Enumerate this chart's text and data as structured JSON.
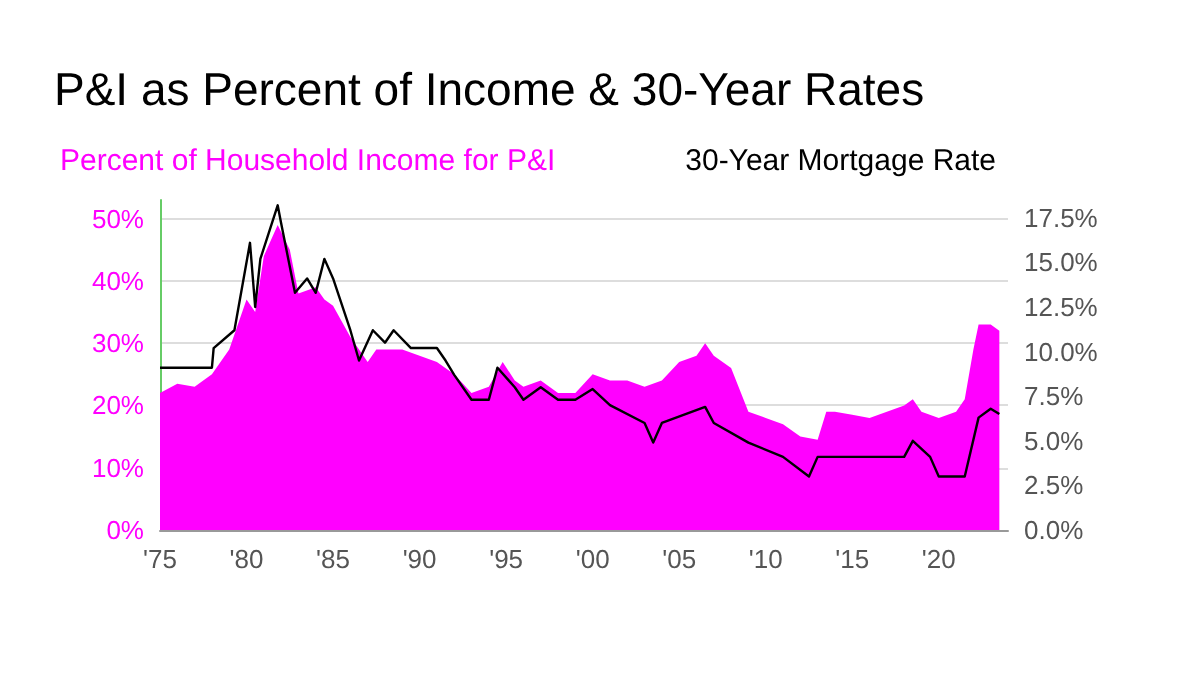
{
  "chart_data": {
    "type": "area",
    "title": "P&I as Percent of Income & 30-Year Rates",
    "legend": "top",
    "grid": "y",
    "marker": "none",
    "xlim": [
      1975,
      2024
    ],
    "xticks": [
      {
        "value": 1975,
        "label": "'75"
      },
      {
        "value": 1980,
        "label": "'80"
      },
      {
        "value": 1985,
        "label": "'85"
      },
      {
        "value": 1990,
        "label": "'90"
      },
      {
        "value": 1995,
        "label": "'95"
      },
      {
        "value": 2000,
        "label": "'00"
      },
      {
        "value": 2005,
        "label": "'05"
      },
      {
        "value": 2010,
        "label": "'10"
      },
      {
        "value": 2015,
        "label": "'15"
      },
      {
        "value": 2020,
        "label": "'20"
      }
    ],
    "ylim": [
      0,
      53
    ],
    "yticks": [
      {
        "value": 0,
        "label": "0%"
      },
      {
        "value": 10,
        "label": "10%"
      },
      {
        "value": 20,
        "label": "20%"
      },
      {
        "value": 30,
        "label": "30%"
      },
      {
        "value": 40,
        "label": "40%"
      },
      {
        "value": 50,
        "label": "50%"
      }
    ],
    "y2lim": [
      0,
      18.5
    ],
    "y2ticks": [
      {
        "value": 0,
        "label": "0.0%"
      },
      {
        "value": 2.5,
        "label": "2.5%"
      },
      {
        "value": 5,
        "label": "5.0%"
      },
      {
        "value": 7.5,
        "label": "7.5%"
      },
      {
        "value": 10,
        "label": "10.0%"
      },
      {
        "value": 12.5,
        "label": "12.5%"
      },
      {
        "value": 15,
        "label": "15.0%"
      },
      {
        "value": 17.5,
        "label": "17.5%"
      }
    ],
    "series": [
      {
        "name": "Percent of Household Income for P&I",
        "color": "#ff00ff",
        "x": [
          1975,
          1976,
          1977,
          1978,
          1979,
          1980,
          1980.5,
          1981,
          1981.8,
          1982.5,
          1983,
          1984,
          1984.5,
          1985,
          1986,
          1987,
          1987.5,
          1988,
          1989,
          1990,
          1991,
          1992,
          1993,
          1994,
          1994.8,
          1995.5,
          1996,
          1997,
          1998,
          1999,
          2000,
          2001,
          2002,
          2003,
          2004,
          2005,
          2006,
          2006.5,
          2007,
          2008,
          2009,
          2010,
          2011,
          2012,
          2013,
          2013.5,
          2014,
          2015,
          2016,
          2017,
          2018,
          2018.5,
          2019,
          2020,
          2021,
          2021.5,
          2022,
          2022.3,
          2023,
          2023.5
        ],
        "values": [
          22,
          23.5,
          23,
          25,
          29,
          37,
          35,
          44,
          49,
          45,
          38,
          39,
          37,
          36,
          31,
          27,
          29,
          29,
          29,
          28,
          27,
          25,
          22,
          23,
          27,
          24,
          23,
          24,
          22,
          22,
          25,
          24,
          24,
          23,
          24,
          27,
          28,
          30,
          28,
          26,
          19,
          18,
          17,
          15,
          14.5,
          19,
          19,
          18.5,
          18,
          19,
          20,
          21,
          19,
          18,
          19,
          21,
          29,
          33,
          33,
          32
        ]
      },
      {
        "name": "30-Year Mortgage Rate",
        "type": "line",
        "axis": "y2",
        "color": "#000000",
        "x": [
          1975,
          1978,
          1978.1,
          1979.3,
          1980.2,
          1980.5,
          1980.8,
          1981.8,
          1982,
          1982.8,
          1983.5,
          1984,
          1984.5,
          1985,
          1986,
          1986.5,
          1987.3,
          1988,
          1988.5,
          1989.5,
          1991,
          1991.5,
          1992,
          1993,
          1994,
          1994.5,
          1995.5,
          1996,
          1997,
          1998,
          1999,
          2000,
          2001,
          2003,
          2003.5,
          2004,
          2006.5,
          2007,
          2009,
          2011,
          2012.5,
          2013,
          2018,
          2018.5,
          2019.5,
          2020,
          2021.5,
          2022.3,
          2023,
          2023.5
        ],
        "values": [
          9.1,
          9.1,
          10.2,
          11.2,
          16.1,
          12.5,
          15.2,
          18.2,
          17.2,
          13.3,
          14.1,
          13.3,
          15.2,
          14.1,
          11.2,
          9.5,
          11.2,
          10.5,
          11.2,
          10.2,
          10.2,
          9.5,
          8.7,
          7.3,
          7.3,
          9.1,
          8,
          7.3,
          8,
          7.3,
          7.3,
          7.9,
          7,
          6,
          4.9,
          6,
          6.9,
          6,
          4.9,
          4.1,
          3,
          4.1,
          4.1,
          5,
          4.1,
          3,
          3,
          6.3,
          6.8,
          6.5
        ]
      }
    ]
  }
}
